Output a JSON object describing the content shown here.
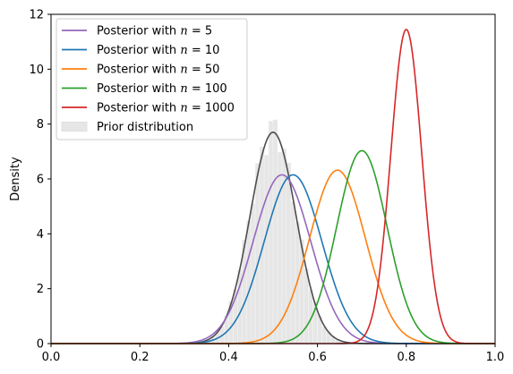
{
  "chart_data": {
    "type": "line",
    "title": "",
    "xlabel": "",
    "ylabel": "Density",
    "xlim": [
      0,
      1
    ],
    "ylim": [
      0,
      12
    ],
    "xticks": [
      "0.0",
      "0.2",
      "0.4",
      "0.6",
      "0.8",
      "1.0"
    ],
    "yticks": [
      "0",
      "2",
      "4",
      "6",
      "8",
      "10",
      "12"
    ],
    "grid": false,
    "legend_position": "top-left",
    "series": [
      {
        "name": "Posterior with n = 5",
        "legend_prefix": "Posterior with ",
        "legend_var": "n",
        "legend_value": "5",
        "color": "#9467bd",
        "mean": 0.52,
        "sd": 0.0648,
        "peak": 6.15
      },
      {
        "name": "Posterior with n = 10",
        "legend_prefix": "Posterior with ",
        "legend_var": "n",
        "legend_value": "10",
        "color": "#1f77b4",
        "mean": 0.545,
        "sd": 0.0648,
        "peak": 6.15
      },
      {
        "name": "Posterior with n = 50",
        "legend_prefix": "Posterior with ",
        "legend_var": "n",
        "legend_value": "50",
        "color": "#ff7f0e",
        "mean": 0.645,
        "sd": 0.063,
        "peak": 6.32
      },
      {
        "name": "Posterior with n = 100",
        "legend_prefix": "Posterior with ",
        "legend_var": "n",
        "legend_value": "100",
        "color": "#2ca02c",
        "mean": 0.7,
        "sd": 0.0567,
        "peak": 7.03
      },
      {
        "name": "Posterior with n = 1000",
        "legend_prefix": "Posterior with ",
        "legend_var": "n",
        "legend_value": "1000",
        "color": "#d62728",
        "mean": 0.8,
        "sd": 0.0348,
        "peak": 11.45
      }
    ],
    "prior": {
      "name": "Prior distribution",
      "line_color": "#4d4d4d",
      "bar_fill": "#e6e6e6",
      "bar_edge": "#f4f4f4",
      "mean": 0.5,
      "sd": 0.0518,
      "peak": 7.7,
      "bin_width": 0.01,
      "bin_start": 0.3,
      "bin_end": 0.7
    }
  }
}
